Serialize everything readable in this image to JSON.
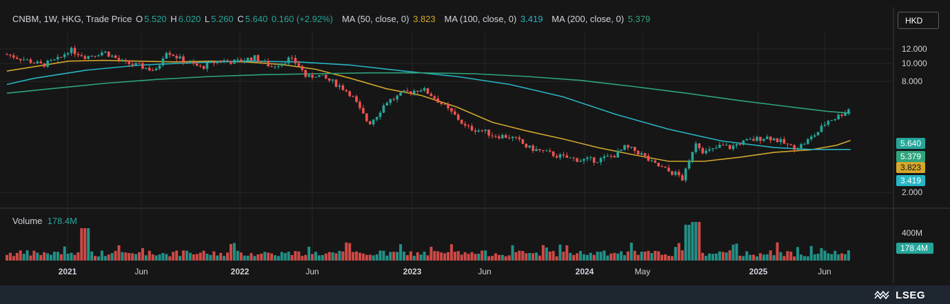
{
  "header": {
    "symbol": "CNBM, 1W, HKG, Trade Price",
    "open_label": "O",
    "open": "5.520",
    "high_label": "H",
    "high": "6.020",
    "low_label": "L",
    "low": "5.260",
    "close_label": "C",
    "close": "5.640",
    "change": "0.160 (+2.92%)",
    "ma50_label": "MA (50, close, 0)",
    "ma50_value": "3.823",
    "ma100_label": "MA (100, close, 0)",
    "ma100_value": "3.419",
    "ma200_label": "MA (200, close, 0)",
    "ma200_value": "5.379"
  },
  "currency_button": "HKD",
  "volume_header": {
    "label": "Volume",
    "value": "178.4M"
  },
  "footer": {
    "brand": "LSEG"
  },
  "colors": {
    "up": "#26a69a",
    "down": "#ef5350",
    "ma50": "#d4a72c",
    "ma100": "#26b6c6",
    "ma200": "#2ea57d",
    "background": "#161616",
    "grid": "#262626",
    "footer": "#1e2630"
  },
  "chart_data": {
    "type": "candlestick",
    "interval": "1W",
    "x_tick_labels": [
      "2021",
      "Jun",
      "2022",
      "Jun",
      "2023",
      "Jun",
      "2024",
      "May",
      "2025",
      "Jun"
    ],
    "price_axis": {
      "scale": "log",
      "ticks": [
        "2.000",
        "8.000",
        "10.000",
        "12.000"
      ],
      "ylim": [
        1.7,
        15
      ]
    },
    "price_labels": [
      {
        "text": "5.640",
        "value": 5.64,
        "color": "#26a69a"
      },
      {
        "text": "5.379",
        "value": 5.379,
        "color": "#2ea57d"
      },
      {
        "text": "3.823",
        "value": 3.823,
        "color": "#d4a72c"
      },
      {
        "text": "3.419",
        "value": 3.419,
        "color": "#26b6c6"
      }
    ],
    "volume_axis": {
      "ticks": [
        "400M"
      ],
      "ylim": [
        0,
        600
      ]
    },
    "volume_label": {
      "text": "178.4M",
      "value": 178.4
    },
    "close_path": [
      [
        2020.85,
        11.2
      ],
      [
        2020.95,
        10.5
      ],
      [
        2021.05,
        9.8
      ],
      [
        2021.15,
        10.6
      ],
      [
        2021.2,
        11.9
      ],
      [
        2021.3,
        10.9
      ],
      [
        2021.4,
        11.6
      ],
      [
        2021.5,
        10.2
      ],
      [
        2021.6,
        9.7
      ],
      [
        2021.7,
        9.1
      ],
      [
        2021.75,
        11.8
      ],
      [
        2021.85,
        10.3
      ],
      [
        2021.95,
        9.5
      ],
      [
        2022.05,
        10.4
      ],
      [
        2022.15,
        10.2
      ],
      [
        2022.25,
        10.8
      ],
      [
        2022.35,
        9.6
      ],
      [
        2022.45,
        10.6
      ],
      [
        2022.5,
        9.9
      ],
      [
        2022.55,
        8.3
      ],
      [
        2022.6,
        8.7
      ],
      [
        2022.7,
        7.9
      ],
      [
        2022.75,
        7.4
      ],
      [
        2022.8,
        6.8
      ],
      [
        2022.85,
        5.6
      ],
      [
        2022.9,
        4.7
      ],
      [
        2022.95,
        5.3
      ],
      [
        2023.0,
        6.2
      ],
      [
        2023.05,
        6.5
      ],
      [
        2023.1,
        6.9
      ],
      [
        2023.15,
        7.1
      ],
      [
        2023.2,
        7.3
      ],
      [
        2023.25,
        6.8
      ],
      [
        2023.3,
        6.2
      ],
      [
        2023.35,
        5.6
      ],
      [
        2023.4,
        5.1
      ],
      [
        2023.45,
        4.5
      ],
      [
        2023.5,
        4.4
      ],
      [
        2023.55,
        4.3
      ],
      [
        2023.6,
        4.1
      ],
      [
        2023.7,
        4.0
      ],
      [
        2023.75,
        3.8
      ],
      [
        2023.8,
        3.5
      ],
      [
        2023.9,
        3.3
      ],
      [
        2024.0,
        3.1
      ],
      [
        2024.1,
        3.0
      ],
      [
        2024.2,
        3.0
      ],
      [
        2024.3,
        3.2
      ],
      [
        2024.35,
        3.5
      ],
      [
        2024.4,
        3.4
      ],
      [
        2024.45,
        3.2
      ],
      [
        2024.5,
        2.9
      ],
      [
        2024.55,
        2.75
      ],
      [
        2024.6,
        2.6
      ],
      [
        2024.65,
        2.5
      ],
      [
        2024.68,
        2.35
      ],
      [
        2024.72,
        3.0
      ],
      [
        2024.75,
        3.8
      ],
      [
        2024.8,
        3.3
      ],
      [
        2024.85,
        3.4
      ],
      [
        2024.9,
        3.6
      ],
      [
        2024.95,
        3.5
      ],
      [
        2025.0,
        3.7
      ],
      [
        2025.05,
        3.8
      ],
      [
        2025.1,
        3.9
      ],
      [
        2025.15,
        4.0
      ],
      [
        2025.2,
        3.9
      ],
      [
        2025.25,
        3.7
      ],
      [
        2025.3,
        3.5
      ],
      [
        2025.35,
        3.6
      ],
      [
        2025.4,
        3.9
      ],
      [
        2025.45,
        4.3
      ],
      [
        2025.5,
        4.9
      ],
      [
        2025.55,
        5.1
      ],
      [
        2025.6,
        5.5
      ],
      [
        2025.63,
        5.64
      ]
    ],
    "series": [
      {
        "name": "MA (50, close, 0)",
        "color": "#d4a72c",
        "points": [
          [
            2020.85,
            9.1
          ],
          [
            2021.0,
            9.6
          ],
          [
            2021.2,
            10.3
          ],
          [
            2021.4,
            10.4
          ],
          [
            2021.6,
            10.3
          ],
          [
            2021.8,
            10.2
          ],
          [
            2022.0,
            10.3
          ],
          [
            2022.2,
            10.2
          ],
          [
            2022.4,
            9.9
          ],
          [
            2022.6,
            9.3
          ],
          [
            2022.8,
            8.3
          ],
          [
            2023.0,
            7.3
          ],
          [
            2023.2,
            6.7
          ],
          [
            2023.4,
            5.8
          ],
          [
            2023.6,
            4.8
          ],
          [
            2023.8,
            4.3
          ],
          [
            2024.0,
            3.9
          ],
          [
            2024.2,
            3.5
          ],
          [
            2024.4,
            3.2
          ],
          [
            2024.6,
            2.95
          ],
          [
            2024.8,
            2.95
          ],
          [
            2025.0,
            3.1
          ],
          [
            2025.2,
            3.3
          ],
          [
            2025.4,
            3.4
          ],
          [
            2025.55,
            3.6
          ],
          [
            2025.63,
            3.823
          ]
        ]
      },
      {
        "name": "MA (100, close, 0)",
        "color": "#26b6c6",
        "points": [
          [
            2020.85,
            7.7
          ],
          [
            2021.0,
            8.3
          ],
          [
            2021.3,
            9.2
          ],
          [
            2021.6,
            9.8
          ],
          [
            2021.9,
            10.1
          ],
          [
            2022.2,
            10.3
          ],
          [
            2022.5,
            10.2
          ],
          [
            2022.8,
            9.8
          ],
          [
            2023.1,
            9.1
          ],
          [
            2023.4,
            8.5
          ],
          [
            2023.7,
            7.7
          ],
          [
            2024.0,
            6.6
          ],
          [
            2024.3,
            5.3
          ],
          [
            2024.6,
            4.4
          ],
          [
            2024.9,
            3.8
          ],
          [
            2025.2,
            3.5
          ],
          [
            2025.4,
            3.42
          ],
          [
            2025.63,
            3.419
          ]
        ]
      },
      {
        "name": "MA (200, close, 0)",
        "color": "#2ea57d",
        "points": [
          [
            2020.85,
            6.9
          ],
          [
            2021.1,
            7.3
          ],
          [
            2021.4,
            7.8
          ],
          [
            2021.7,
            8.2
          ],
          [
            2022.0,
            8.5
          ],
          [
            2022.3,
            8.7
          ],
          [
            2022.6,
            8.8
          ],
          [
            2022.9,
            8.9
          ],
          [
            2023.2,
            8.9
          ],
          [
            2023.5,
            8.8
          ],
          [
            2023.8,
            8.5
          ],
          [
            2024.1,
            8.1
          ],
          [
            2024.4,
            7.5
          ],
          [
            2024.7,
            6.9
          ],
          [
            2025.0,
            6.3
          ],
          [
            2025.3,
            5.8
          ],
          [
            2025.5,
            5.5
          ],
          [
            2025.63,
            5.379
          ]
        ]
      }
    ]
  }
}
